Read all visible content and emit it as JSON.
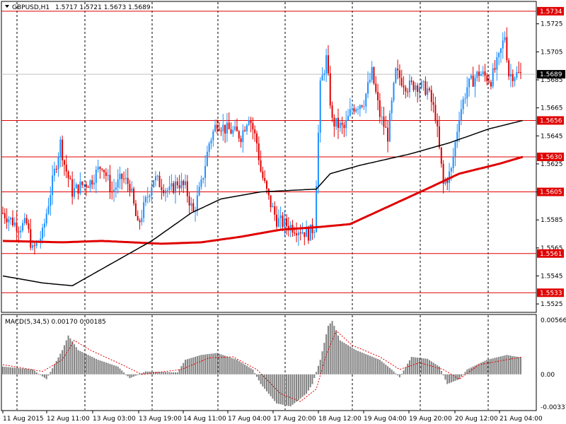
{
  "header": {
    "symbol_tf": "GBPUSD,H1",
    "ohlc": "1.5717 1.5721 1.5673 1.5689"
  },
  "macd": {
    "label": "MACD(5,34,5) 0.00170 0.00185",
    "ticks": [
      "0.00566",
      "0.00",
      "-0.00337"
    ],
    "ylim": [
      -0.00337,
      0.00566
    ]
  },
  "chart_data": {
    "type": "candlestick",
    "symbol": "GBPUSD",
    "timeframe": "H1",
    "ylim": [
      1.5519,
      1.5741
    ],
    "y_ticks": [
      "1.5725",
      "1.5705",
      "1.5685",
      "1.5665",
      "1.5645",
      "1.5625",
      "1.5605",
      "1.5585",
      "1.5565",
      "1.5545",
      "1.5525"
    ],
    "x_ticks": [
      "11 Aug 2015",
      "12 Aug 11:00",
      "13 Aug 03:00",
      "13 Aug 19:00",
      "14 Aug 11:00",
      "17 Aug 04:00",
      "17 Aug 20:00",
      "18 Aug 12:00",
      "19 Aug 04:00",
      "19 Aug 20:00",
      "20 Aug 12:00",
      "21 Aug 04:00"
    ],
    "levels": [
      {
        "value": 1.5734,
        "label": "1.5734"
      },
      {
        "value": 1.5656,
        "label": "1.5656"
      },
      {
        "value": 1.563,
        "label": "1.5630"
      },
      {
        "value": 1.5605,
        "label": "1.5605"
      },
      {
        "value": 1.5561,
        "label": "1.5561"
      },
      {
        "value": 1.5533,
        "label": "1.5533"
      }
    ],
    "current_price": {
      "value": 1.5689,
      "label": "1.5689"
    },
    "close_path": [
      [
        0,
        1.559
      ],
      [
        8,
        1.558
      ],
      [
        12,
        1.5582
      ],
      [
        15,
        1.5563
      ],
      [
        20,
        1.5575
      ],
      [
        24,
        1.5605
      ],
      [
        29,
        1.564
      ],
      [
        31,
        1.5625
      ],
      [
        35,
        1.5605
      ],
      [
        40,
        1.561
      ],
      [
        44,
        1.5612
      ],
      [
        50,
        1.5625
      ],
      [
        55,
        1.5605
      ],
      [
        60,
        1.5615
      ],
      [
        64,
        1.561
      ],
      [
        68,
        1.558
      ],
      [
        72,
        1.5598
      ],
      [
        76,
        1.5615
      ],
      [
        80,
        1.561
      ],
      [
        84,
        1.5605
      ],
      [
        88,
        1.5612
      ],
      [
        92,
        1.5608
      ],
      [
        96,
        1.559
      ],
      [
        100,
        1.561
      ],
      [
        104,
        1.564
      ],
      [
        108,
        1.5655
      ],
      [
        112,
        1.565
      ],
      [
        116,
        1.5648
      ],
      [
        120,
        1.5645
      ],
      [
        124,
        1.566
      ],
      [
        128,
        1.564
      ],
      [
        130,
        1.562
      ],
      [
        134,
        1.56
      ],
      [
        138,
        1.5585
      ],
      [
        142,
        1.5582
      ],
      [
        146,
        1.558
      ],
      [
        150,
        1.5578
      ],
      [
        154,
        1.5575
      ],
      [
        157,
        1.558
      ],
      [
        160,
        1.568
      ],
      [
        163,
        1.57
      ],
      [
        166,
        1.5655
      ],
      [
        172,
        1.565
      ],
      [
        176,
        1.5665
      ],
      [
        182,
        1.567
      ],
      [
        186,
        1.569
      ],
      [
        190,
        1.566
      ],
      [
        194,
        1.5645
      ],
      [
        198,
        1.569
      ],
      [
        204,
        1.568
      ],
      [
        208,
        1.5682
      ],
      [
        214,
        1.5678
      ],
      [
        218,
        1.566
      ],
      [
        222,
        1.561
      ],
      [
        226,
        1.562
      ],
      [
        230,
        1.566
      ],
      [
        234,
        1.568
      ],
      [
        240,
        1.569
      ],
      [
        246,
        1.5685
      ],
      [
        250,
        1.57
      ],
      [
        253,
        1.5717
      ],
      [
        255,
        1.5689
      ]
    ],
    "ma_black": [
      [
        0,
        1.5545
      ],
      [
        20,
        1.554
      ],
      [
        35,
        1.5538
      ],
      [
        50,
        1.555
      ],
      [
        75,
        1.557
      ],
      [
        95,
        1.559
      ],
      [
        110,
        1.56
      ],
      [
        130,
        1.5605
      ],
      [
        158,
        1.5607
      ],
      [
        165,
        1.5618
      ],
      [
        180,
        1.5624
      ],
      [
        205,
        1.5632
      ],
      [
        225,
        1.564
      ],
      [
        245,
        1.565
      ],
      [
        262,
        1.5656
      ]
    ],
    "ma_red": [
      [
        0,
        1.557
      ],
      [
        30,
        1.5569
      ],
      [
        50,
        1.557
      ],
      [
        80,
        1.5568
      ],
      [
        100,
        1.5569
      ],
      [
        120,
        1.5573
      ],
      [
        140,
        1.5578
      ],
      [
        160,
        1.558
      ],
      [
        175,
        1.5582
      ],
      [
        195,
        1.5595
      ],
      [
        215,
        1.5608
      ],
      [
        230,
        1.5618
      ],
      [
        250,
        1.5625
      ],
      [
        262,
        1.563
      ]
    ],
    "macd_hist": [
      [
        0,
        0.0008
      ],
      [
        15,
        0.0005
      ],
      [
        22,
        -0.0005
      ],
      [
        30,
        0.0025
      ],
      [
        33,
        0.004
      ],
      [
        38,
        0.0025
      ],
      [
        48,
        0.0015
      ],
      [
        58,
        0.0008
      ],
      [
        64,
        -0.0004
      ],
      [
        72,
        0.0003
      ],
      [
        88,
        0.0002
      ],
      [
        92,
        0.0015
      ],
      [
        100,
        0.002
      ],
      [
        108,
        0.0022
      ],
      [
        118,
        0.0015
      ],
      [
        126,
        0.0005
      ],
      [
        130,
        -0.001
      ],
      [
        138,
        -0.003
      ],
      [
        145,
        -0.0033
      ],
      [
        153,
        -0.002
      ],
      [
        156,
        -0.001
      ],
      [
        160,
        0.0015
      ],
      [
        164,
        0.005
      ],
      [
        166,
        0.0055
      ],
      [
        170,
        0.0035
      ],
      [
        178,
        0.0025
      ],
      [
        184,
        0.002
      ],
      [
        190,
        0.0015
      ],
      [
        196,
        0.0005
      ],
      [
        200,
        -0.0003
      ],
      [
        206,
        0.0018
      ],
      [
        214,
        0.0016
      ],
      [
        220,
        0.0008
      ],
      [
        224,
        -0.001
      ],
      [
        230,
        -0.0005
      ],
      [
        234,
        0.0005
      ],
      [
        244,
        0.0015
      ],
      [
        254,
        0.002
      ],
      [
        262,
        0.0017
      ]
    ],
    "macd_signal": [
      [
        0,
        0.001
      ],
      [
        20,
        0.0003
      ],
      [
        30,
        0.0015
      ],
      [
        36,
        0.0035
      ],
      [
        44,
        0.0025
      ],
      [
        60,
        0.001
      ],
      [
        70,
        0.0
      ],
      [
        90,
        0.0005
      ],
      [
        104,
        0.0017
      ],
      [
        116,
        0.0018
      ],
      [
        128,
        0.0005
      ],
      [
        140,
        -0.002
      ],
      [
        150,
        -0.0028
      ],
      [
        158,
        -0.0015
      ],
      [
        163,
        0.002
      ],
      [
        168,
        0.0045
      ],
      [
        176,
        0.003
      ],
      [
        190,
        0.0018
      ],
      [
        200,
        0.0005
      ],
      [
        210,
        0.0012
      ],
      [
        222,
        0.0005
      ],
      [
        230,
        -0.0005
      ],
      [
        240,
        0.001
      ],
      [
        262,
        0.0018
      ]
    ]
  }
}
